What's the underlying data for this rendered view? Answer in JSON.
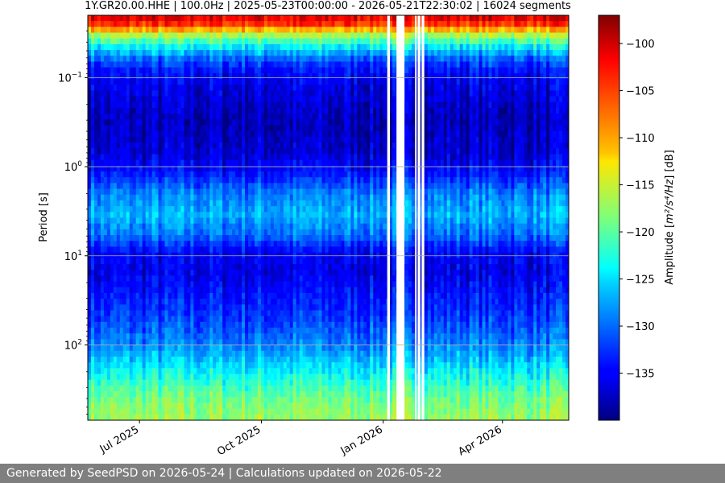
{
  "chart_data": {
    "type": "heatmap",
    "title": "1Y.GR20.00.HHE | 100.0Hz | 2025-05-23T00:00:00 - 2026-05-21T22:30:02 | 16024 segments",
    "ylabel": "Period [s]",
    "y_scale": "log",
    "y_range": [
      0.02,
      700
    ],
    "y_ticks": [
      {
        "value": 0.1,
        "base": "10",
        "exp": "−1"
      },
      {
        "value": 1,
        "base": "10",
        "exp": "0"
      },
      {
        "value": 10,
        "base": "10",
        "exp": "1"
      },
      {
        "value": 100,
        "base": "10",
        "exp": "2"
      }
    ],
    "x_range": [
      "2025-05-23",
      "2026-05-21"
    ],
    "x_ticks": [
      {
        "date": "2025-07-01",
        "label": "Jul 2025"
      },
      {
        "date": "2025-10-01",
        "label": "Oct 2025"
      },
      {
        "date": "2026-01-01",
        "label": "Jan 2026"
      },
      {
        "date": "2026-04-01",
        "label": "Apr 2026"
      }
    ],
    "grid": true,
    "colormap": "jet",
    "colorbar": {
      "label_prefix": "Amplitude [",
      "label_unit": "m²/s⁴/Hz",
      "label_suffix": "] [dB]",
      "range": [
        -140,
        -97
      ],
      "ticks": [
        -100,
        -105,
        -110,
        -115,
        -120,
        -125,
        -130,
        -135
      ]
    },
    "data_gaps": [
      {
        "start": "2026-01-04",
        "end": "2026-01-06"
      },
      {
        "start": "2026-01-11",
        "end": "2026-01-17"
      },
      {
        "start": "2026-01-25",
        "end": "2026-01-26"
      },
      {
        "start": "2026-01-27",
        "end": "2026-01-29"
      },
      {
        "start": "2026-01-30",
        "end": "2026-02-01"
      }
    ],
    "amplitude_profile_db": [
      {
        "period": 0.02,
        "db": -100
      },
      {
        "period": 0.025,
        "db": -104
      },
      {
        "period": 0.03,
        "db": -112
      },
      {
        "period": 0.035,
        "db": -118
      },
      {
        "period": 0.045,
        "db": -124
      },
      {
        "period": 0.06,
        "db": -130
      },
      {
        "period": 0.08,
        "db": -134
      },
      {
        "period": 0.12,
        "db": -136
      },
      {
        "period": 0.3,
        "db": -138
      },
      {
        "period": 0.7,
        "db": -137
      },
      {
        "period": 1.2,
        "db": -134
      },
      {
        "period": 2,
        "db": -129
      },
      {
        "period": 3.5,
        "db": -127
      },
      {
        "period": 6,
        "db": -130
      },
      {
        "period": 9,
        "db": -135
      },
      {
        "period": 15,
        "db": -136
      },
      {
        "period": 40,
        "db": -133
      },
      {
        "period": 100,
        "db": -129
      },
      {
        "period": 200,
        "db": -124
      },
      {
        "period": 400,
        "db": -119
      },
      {
        "period": 700,
        "db": -117
      }
    ]
  },
  "footer": {
    "text": "Generated by SeedPSD on 2026-05-24 | Calculations updated on 2026-05-22"
  }
}
